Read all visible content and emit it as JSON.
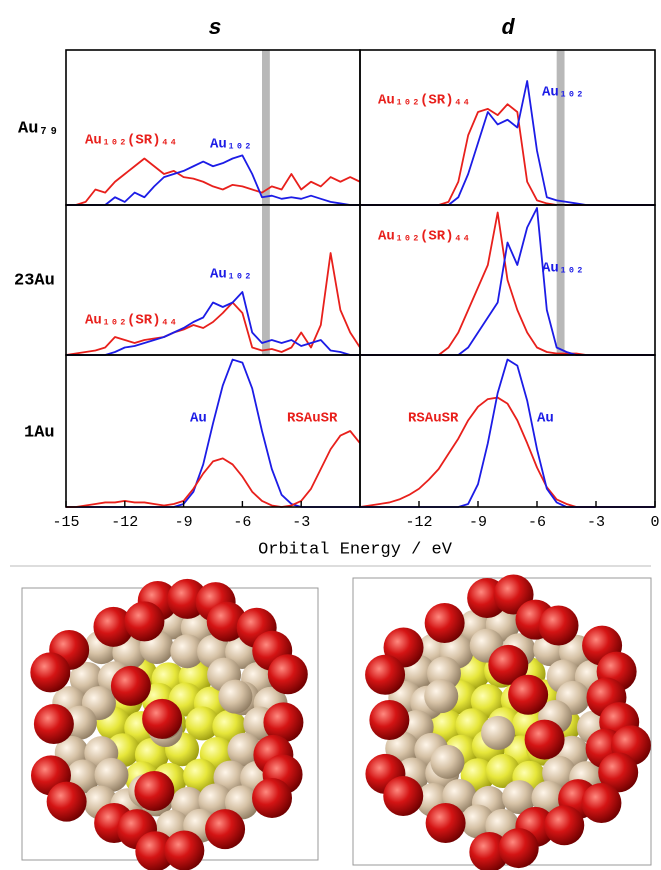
{
  "columns": [
    "s",
    "d"
  ],
  "rows": [
    "Au₇₉",
    "23Au",
    "1Au"
  ],
  "x_label": "Orbital Energy / eV",
  "chart_data": [
    {
      "type": "line",
      "xlim": [
        -15,
        0
      ],
      "ylim": [
        0,
        1
      ],
      "highlight": [
        -5,
        -4.6
      ],
      "x": [
        -15,
        -14.5,
        -14,
        -13.5,
        -13,
        -12.5,
        -12,
        -11.5,
        -11,
        -10.5,
        -10,
        -9.5,
        -9,
        -8.5,
        -8,
        -7.5,
        -7,
        -6.5,
        -6,
        -5.5,
        -5,
        -4.5,
        -4,
        -3.5,
        -3,
        -2.5,
        -2,
        -1.5,
        -1,
        -0.5,
        0
      ],
      "series": [
        {
          "name": "Au₁₀₂(SR)₄₄",
          "color": "#e8201c",
          "values": [
            0,
            0,
            0.02,
            0.1,
            0.08,
            0.15,
            0.2,
            0.25,
            0.3,
            0.25,
            0.2,
            0.22,
            0.18,
            0.17,
            0.15,
            0.12,
            0.1,
            0.13,
            0.12,
            0.1,
            0.08,
            0.12,
            0.1,
            0.2,
            0.1,
            0.15,
            0.12,
            0.18,
            0.15,
            0.18,
            0.15
          ]
        },
        {
          "name": "Au₁₀₂",
          "color": "#1c1ce6",
          "values": [
            0,
            0,
            0,
            0,
            0,
            0.05,
            0.02,
            0.08,
            0.05,
            0.12,
            0.18,
            0.2,
            0.22,
            0.25,
            0.28,
            0.25,
            0.27,
            0.3,
            0.32,
            0.2,
            0.05,
            0.06,
            0.04,
            0.05,
            0.04,
            0.06,
            0.04,
            0.02,
            0.01,
            0,
            0
          ]
        }
      ]
    },
    {
      "type": "line",
      "xlim": [
        -15,
        0
      ],
      "ylim": [
        0,
        1
      ],
      "highlight": [
        -5,
        -4.6
      ],
      "x": [
        -15,
        -14.5,
        -14,
        -13.5,
        -13,
        -12.5,
        -12,
        -11.5,
        -11,
        -10.5,
        -10,
        -9.5,
        -9,
        -8.5,
        -8,
        -7.5,
        -7,
        -6.5,
        -6,
        -5.5,
        -5,
        -4.5,
        -4,
        -3.5,
        -3,
        -2.5,
        -2,
        -1.5,
        -1,
        -0.5,
        0
      ],
      "series": [
        {
          "name": "Au₁₀₂(SR)₄₄",
          "color": "#e8201c",
          "values": [
            0,
            0,
            0,
            0,
            0,
            0,
            0,
            0,
            0,
            0.02,
            0.15,
            0.45,
            0.6,
            0.62,
            0.58,
            0.65,
            0.6,
            0.15,
            0.03,
            0.01,
            0,
            0,
            0,
            0,
            0,
            0,
            0,
            0,
            0,
            0,
            0
          ]
        },
        {
          "name": "Au₁₀₂",
          "color": "#1c1ce6",
          "values": [
            0,
            0,
            0,
            0,
            0,
            0,
            0,
            0,
            0,
            0,
            0.05,
            0.2,
            0.4,
            0.6,
            0.52,
            0.55,
            0.5,
            0.8,
            0.35,
            0.05,
            0.03,
            0.02,
            0.01,
            0,
            0,
            0,
            0,
            0,
            0,
            0,
            0
          ]
        }
      ]
    },
    {
      "type": "line",
      "xlim": [
        -15,
        0
      ],
      "ylim": [
        0,
        1
      ],
      "highlight": [
        -5,
        -4.6
      ],
      "x": [
        -15,
        -14.5,
        -14,
        -13.5,
        -13,
        -12.5,
        -12,
        -11.5,
        -11,
        -10.5,
        -10,
        -9.5,
        -9,
        -8.5,
        -8,
        -7.5,
        -7,
        -6.5,
        -6,
        -5.5,
        -5,
        -4.5,
        -4,
        -3.5,
        -3,
        -2.5,
        -2,
        -1.5,
        -1,
        -0.5,
        0
      ],
      "series": [
        {
          "name": "Au₁₀₂(SR)₄₄",
          "color": "#e8201c",
          "values": [
            0,
            0.01,
            0.02,
            0.03,
            0.05,
            0.12,
            0.1,
            0.08,
            0.1,
            0.11,
            0.12,
            0.15,
            0.17,
            0.2,
            0.18,
            0.22,
            0.28,
            0.35,
            0.28,
            0.05,
            0.03,
            0.04,
            0.02,
            0.05,
            0.15,
            0.05,
            0.2,
            0.68,
            0.3,
            0.15,
            0.05
          ]
        },
        {
          "name": "Au₁₀₂",
          "color": "#1c1ce6",
          "values": [
            0,
            0,
            0,
            0,
            0,
            0.02,
            0.05,
            0.06,
            0.08,
            0.1,
            0.12,
            0.15,
            0.18,
            0.22,
            0.25,
            0.35,
            0.32,
            0.35,
            0.42,
            0.15,
            0.08,
            0.1,
            0.08,
            0.1,
            0.06,
            0.08,
            0.1,
            0.03,
            0.02,
            0,
            0
          ]
        }
      ]
    },
    {
      "type": "line",
      "xlim": [
        -15,
        0
      ],
      "ylim": [
        0,
        1
      ],
      "highlight": [
        -5,
        -4.6
      ],
      "x": [
        -15,
        -14.5,
        -14,
        -13.5,
        -13,
        -12.5,
        -12,
        -11.5,
        -11,
        -10.5,
        -10,
        -9.5,
        -9,
        -8.5,
        -8,
        -7.5,
        -7,
        -6.5,
        -6,
        -5.5,
        -5,
        -4.5,
        -4,
        -3.5,
        -3,
        -2.5,
        -2,
        -1.5,
        -1,
        -0.5,
        0
      ],
      "series": [
        {
          "name": "Au₁₀₂(SR)₄₄",
          "color": "#e8201c",
          "values": [
            0,
            0,
            0,
            0,
            0,
            0,
            0,
            0,
            0,
            0.05,
            0.15,
            0.3,
            0.45,
            0.6,
            0.95,
            0.5,
            0.3,
            0.15,
            0.05,
            0.02,
            0.01,
            0.01,
            0.01,
            0,
            0,
            0,
            0,
            0,
            0,
            0,
            0
          ]
        },
        {
          "name": "Au₁₀₂",
          "color": "#1c1ce6",
          "values": [
            0,
            0,
            0,
            0,
            0,
            0,
            0,
            0,
            0,
            0,
            0,
            0.05,
            0.15,
            0.25,
            0.35,
            0.75,
            0.6,
            0.85,
            0.98,
            0.3,
            0.05,
            0.02,
            0,
            0,
            0,
            0,
            0,
            0,
            0,
            0,
            0
          ]
        }
      ]
    },
    {
      "type": "line",
      "xlim": [
        -15,
        0
      ],
      "ylim": [
        0,
        1
      ],
      "xticks": [
        -15,
        -12,
        -9,
        -6,
        -3
      ],
      "x": [
        -15,
        -14.5,
        -14,
        -13.5,
        -13,
        -12.5,
        -12,
        -11.5,
        -11,
        -10.5,
        -10,
        -9.5,
        -9,
        -8.5,
        -8,
        -7.5,
        -7,
        -6.5,
        -6,
        -5.5,
        -5,
        -4.5,
        -4,
        -3.5,
        -3,
        -2.5,
        -2,
        -1.5,
        -1,
        -0.5,
        0
      ],
      "series": [
        {
          "name": "Au",
          "color": "#1c1ce6",
          "values": [
            0,
            0,
            0,
            0,
            0,
            0,
            0,
            0,
            0,
            0,
            0,
            0,
            0.02,
            0.1,
            0.28,
            0.55,
            0.8,
            0.97,
            0.95,
            0.78,
            0.5,
            0.25,
            0.08,
            0.02,
            0,
            0,
            0,
            0,
            0,
            0,
            0
          ]
        },
        {
          "name": "RSAuSR",
          "color": "#e8201c",
          "values": [
            0,
            0,
            0.01,
            0.02,
            0.03,
            0.03,
            0.04,
            0.03,
            0.03,
            0.02,
            0.01,
            0.02,
            0.04,
            0.12,
            0.22,
            0.3,
            0.32,
            0.28,
            0.2,
            0.1,
            0.04,
            0.01,
            0,
            0.01,
            0.04,
            0.12,
            0.25,
            0.38,
            0.47,
            0.5,
            0.42
          ]
        }
      ]
    },
    {
      "type": "line",
      "xlim": [
        -15,
        0
      ],
      "ylim": [
        0,
        1
      ],
      "xticks": [
        -12,
        -9,
        -6,
        -3,
        0
      ],
      "x": [
        -15,
        -14.5,
        -14,
        -13.5,
        -13,
        -12.5,
        -12,
        -11.5,
        -11,
        -10.5,
        -10,
        -9.5,
        -9,
        -8.5,
        -8,
        -7.5,
        -7,
        -6.5,
        -6,
        -5.5,
        -5,
        -4.5,
        -4,
        -3.5,
        -3,
        -2.5,
        -2,
        -1.5,
        -1,
        -0.5,
        0
      ],
      "series": [
        {
          "name": "RSAuSR",
          "color": "#e8201c",
          "values": [
            0,
            0.01,
            0.02,
            0.03,
            0.05,
            0.08,
            0.12,
            0.18,
            0.25,
            0.35,
            0.45,
            0.57,
            0.66,
            0.71,
            0.72,
            0.68,
            0.57,
            0.42,
            0.26,
            0.13,
            0.05,
            0.02,
            0,
            0,
            0,
            0,
            0,
            0,
            0,
            0,
            0
          ]
        },
        {
          "name": "Au",
          "color": "#1c1ce6",
          "values": [
            0,
            0,
            0,
            0,
            0,
            0,
            0,
            0,
            0,
            0,
            0,
            0.02,
            0.15,
            0.42,
            0.75,
            0.97,
            0.93,
            0.7,
            0.38,
            0.12,
            0.03,
            0,
            0,
            0,
            0,
            0,
            0,
            0,
            0,
            0,
            0
          ]
        }
      ]
    }
  ]
}
